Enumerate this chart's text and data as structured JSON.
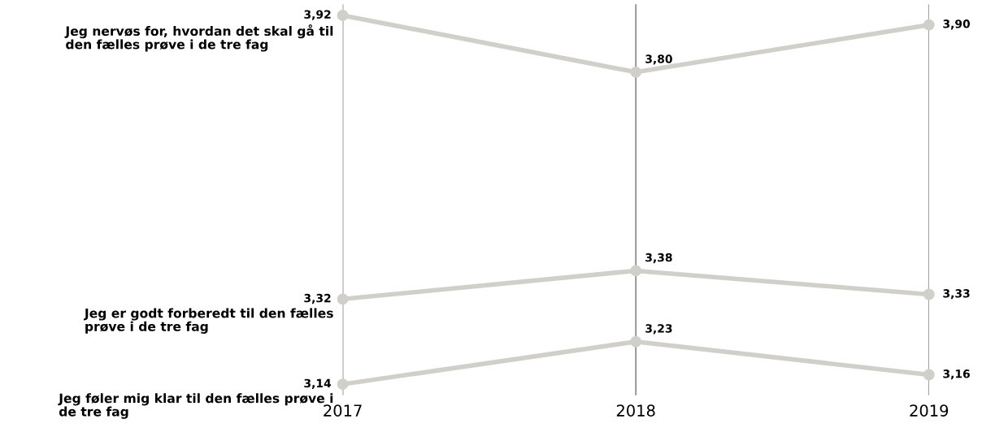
{
  "chart_data": {
    "type": "line",
    "categories": [
      "2017",
      "2018",
      "2019"
    ],
    "grid": "x",
    "marker": "circle",
    "line_style": "solid",
    "legend": "left",
    "series": [
      {
        "name": "Jeg nervøs for, hvordan det skal gå til\nden fælles prøve i de tre fag",
        "color": "#d0cfc9",
        "values": [
          3.92,
          3.8,
          3.9
        ],
        "value_labels": [
          "3,92",
          "3,80",
          "3,90"
        ]
      },
      {
        "name": "Jeg er godt forberedt til den fælles\nprøve i de tre fag",
        "color": "#d0cfc9",
        "values": [
          3.32,
          3.38,
          3.33
        ],
        "value_labels": [
          "3,32",
          "3,38",
          "3,33"
        ]
      },
      {
        "name": "Jeg føler mig klar til den fælles prøve i\nde tre fag",
        "color": "#d0cfc9",
        "values": [
          3.14,
          3.23,
          3.16
        ],
        "value_labels": [
          "3,14",
          "3,23",
          "3,16"
        ]
      }
    ]
  }
}
